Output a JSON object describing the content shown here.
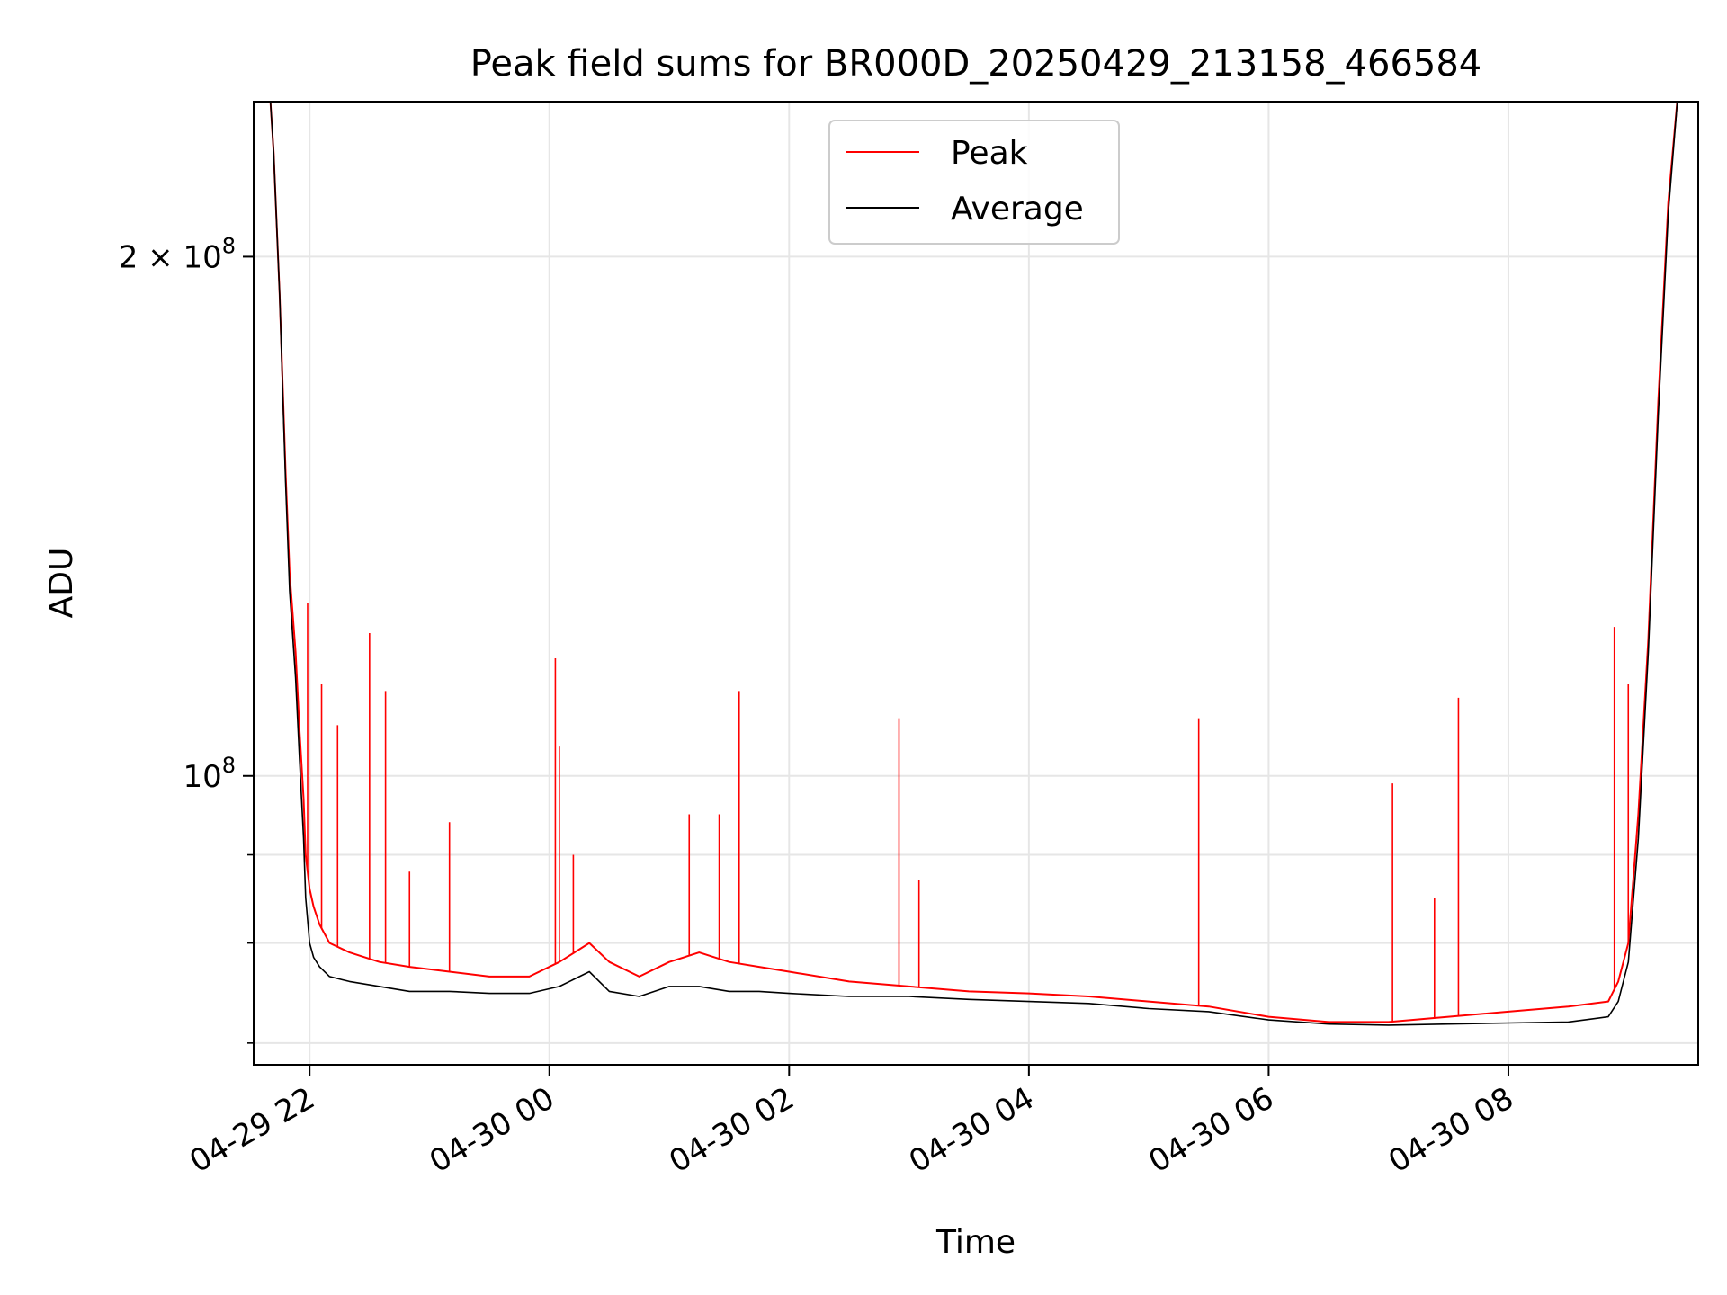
{
  "chart_data": {
    "type": "line",
    "title": "Peak field sums for BR000D_20250429_213158_466584",
    "xlabel": "Time",
    "ylabel": "ADU",
    "x_axis": {
      "type": "time",
      "range": [
        "2025-04-29T21:32",
        "2025-04-30T09:35"
      ],
      "ticks": [
        {
          "value": "2025-04-29T22:00",
          "label": "04-29 22"
        },
        {
          "value": "2025-04-30T00:00",
          "label": "04-30 00"
        },
        {
          "value": "2025-04-30T02:00",
          "label": "04-30 02"
        },
        {
          "value": "2025-04-30T04:00",
          "label": "04-30 04"
        },
        {
          "value": "2025-04-30T06:00",
          "label": "04-30 06"
        },
        {
          "value": "2025-04-30T08:00",
          "label": "04-30 08"
        }
      ]
    },
    "y_axis": {
      "scale": "log",
      "range": [
        68000000,
        246000000
      ],
      "major_ticks": [
        {
          "value": 100000000,
          "mantissa": "",
          "base": "10",
          "exponent": "8"
        },
        {
          "value": 200000000,
          "mantissa": "2 × ",
          "base": "10",
          "exponent": "8"
        }
      ],
      "minor_ticks": [
        70000000,
        80000000,
        90000000
      ]
    },
    "grid": true,
    "legend_position": "top-center",
    "series": [
      {
        "name": "Peak",
        "color": "#ff0000",
        "x": [
          "2025-04-29T21:32",
          "2025-04-29T21:40",
          "2025-04-29T21:42",
          "2025-04-29T21:45",
          "2025-04-29T21:48",
          "2025-04-29T21:50",
          "2025-04-29T21:53",
          "2025-04-29T21:55",
          "2025-04-29T21:57",
          "2025-04-29T21:58",
          "2025-04-29T22:00",
          "2025-04-29T22:02",
          "2025-04-29T22:05",
          "2025-04-29T22:10",
          "2025-04-29T22:20",
          "2025-04-29T22:35",
          "2025-04-29T22:50",
          "2025-04-29T23:10",
          "2025-04-29T23:30",
          "2025-04-29T23:50",
          "2025-04-30T00:05",
          "2025-04-30T00:20",
          "2025-04-30T00:30",
          "2025-04-30T00:45",
          "2025-04-30T01:00",
          "2025-04-30T01:15",
          "2025-04-30T01:30",
          "2025-04-30T01:45",
          "2025-04-30T02:00",
          "2025-04-30T02:30",
          "2025-04-30T03:00",
          "2025-04-30T03:30",
          "2025-04-30T04:00",
          "2025-04-30T04:30",
          "2025-04-30T05:00",
          "2025-04-30T05:30",
          "2025-04-30T06:00",
          "2025-04-30T06:30",
          "2025-04-30T07:00",
          "2025-04-30T07:30",
          "2025-04-30T08:00",
          "2025-04-30T08:30",
          "2025-04-30T08:50",
          "2025-04-30T08:55",
          "2025-04-30T09:00",
          "2025-04-30T09:05",
          "2025-04-30T09:10",
          "2025-04-30T09:15",
          "2025-04-30T09:20",
          "2025-04-30T09:25",
          "2025-04-30T09:35"
        ],
        "values": [
          250000000,
          250000000,
          230000000,
          190000000,
          150000000,
          131000000,
          118000000,
          106000000,
          97000000,
          90000000,
          86000000,
          84000000,
          82000000,
          80000000,
          79000000,
          78000000,
          77500000,
          77000000,
          76500000,
          76500000,
          78000000,
          80000000,
          78000000,
          76500000,
          78000000,
          79000000,
          78000000,
          77500000,
          77000000,
          76000000,
          75500000,
          75000000,
          74800000,
          74500000,
          74000000,
          73500000,
          72500000,
          72000000,
          72000000,
          72500000,
          73000000,
          73500000,
          74000000,
          76000000,
          80000000,
          95000000,
          120000000,
          165000000,
          215000000,
          250000000,
          250000000
        ],
        "spikes": [
          {
            "x": "2025-04-29T21:59",
            "y": 126000000
          },
          {
            "x": "2025-04-29T22:06",
            "y": 113000000
          },
          {
            "x": "2025-04-29T22:14",
            "y": 107000000
          },
          {
            "x": "2025-04-29T22:30",
            "y": 121000000
          },
          {
            "x": "2025-04-29T22:38",
            "y": 112000000
          },
          {
            "x": "2025-04-29T22:50",
            "y": 88000000
          },
          {
            "x": "2025-04-29T23:10",
            "y": 94000000
          },
          {
            "x": "2025-04-30T00:03",
            "y": 117000000
          },
          {
            "x": "2025-04-30T00:05",
            "y": 104000000
          },
          {
            "x": "2025-04-30T00:12",
            "y": 90000000
          },
          {
            "x": "2025-04-30T01:10",
            "y": 95000000
          },
          {
            "x": "2025-04-30T01:25",
            "y": 95000000
          },
          {
            "x": "2025-04-30T01:35",
            "y": 112000000
          },
          {
            "x": "2025-04-30T02:55",
            "y": 108000000
          },
          {
            "x": "2025-04-30T03:05",
            "y": 87000000
          },
          {
            "x": "2025-04-30T05:25",
            "y": 108000000
          },
          {
            "x": "2025-04-30T07:02",
            "y": 99000000
          },
          {
            "x": "2025-04-30T07:23",
            "y": 85000000
          },
          {
            "x": "2025-04-30T07:35",
            "y": 111000000
          },
          {
            "x": "2025-04-30T08:53",
            "y": 122000000
          },
          {
            "x": "2025-04-30T09:00",
            "y": 113000000
          }
        ]
      },
      {
        "name": "Average",
        "color": "#000000",
        "x": [
          "2025-04-29T21:32",
          "2025-04-29T21:40",
          "2025-04-29T21:42",
          "2025-04-29T21:45",
          "2025-04-29T21:48",
          "2025-04-29T21:50",
          "2025-04-29T21:53",
          "2025-04-29T21:55",
          "2025-04-29T21:57",
          "2025-04-29T21:58",
          "2025-04-29T22:00",
          "2025-04-29T22:02",
          "2025-04-29T22:05",
          "2025-04-29T22:10",
          "2025-04-29T22:20",
          "2025-04-29T22:35",
          "2025-04-29T22:50",
          "2025-04-29T23:10",
          "2025-04-29T23:30",
          "2025-04-29T23:50",
          "2025-04-30T00:05",
          "2025-04-30T00:20",
          "2025-04-30T00:30",
          "2025-04-30T00:45",
          "2025-04-30T01:00",
          "2025-04-30T01:15",
          "2025-04-30T01:30",
          "2025-04-30T01:45",
          "2025-04-30T02:00",
          "2025-04-30T02:30",
          "2025-04-30T03:00",
          "2025-04-30T03:30",
          "2025-04-30T04:00",
          "2025-04-30T04:30",
          "2025-04-30T05:00",
          "2025-04-30T05:30",
          "2025-04-30T06:00",
          "2025-04-30T06:30",
          "2025-04-30T07:00",
          "2025-04-30T07:30",
          "2025-04-30T08:00",
          "2025-04-30T08:30",
          "2025-04-30T08:50",
          "2025-04-30T08:55",
          "2025-04-30T09:00",
          "2025-04-30T09:05",
          "2025-04-30T09:10",
          "2025-04-30T09:15",
          "2025-04-30T09:20",
          "2025-04-30T09:25",
          "2025-04-30T09:35"
        ],
        "values": [
          250000000,
          250000000,
          230000000,
          190000000,
          148000000,
          128000000,
          114000000,
          102000000,
          92000000,
          85000000,
          80000000,
          78500000,
          77500000,
          76500000,
          76000000,
          75500000,
          75000000,
          75000000,
          74800000,
          74800000,
          75500000,
          77000000,
          75000000,
          74500000,
          75500000,
          75500000,
          75000000,
          75000000,
          74800000,
          74500000,
          74500000,
          74200000,
          74000000,
          73800000,
          73300000,
          73000000,
          72200000,
          71800000,
          71700000,
          71800000,
          71900000,
          72000000,
          72500000,
          74000000,
          78000000,
          92000000,
          118000000,
          162000000,
          212000000,
          250000000,
          250000000
        ]
      }
    ]
  }
}
